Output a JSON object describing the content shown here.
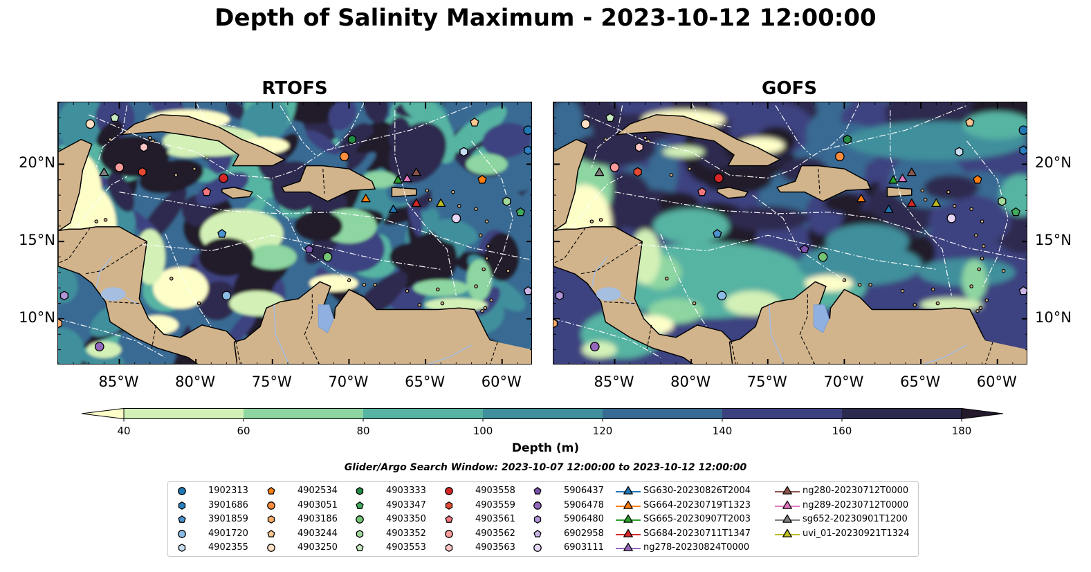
{
  "title": "Depth of Salinity Maximum - 2023-10-12 12:00:00",
  "panels": [
    {
      "title": "RTOFS"
    },
    {
      "title": "GOFS"
    }
  ],
  "map": {
    "lon_ticks": [
      "85°W",
      "80°W",
      "75°W",
      "70°W",
      "65°W",
      "60°W"
    ],
    "lat_ticks": [
      "20°N",
      "15°N",
      "10°N"
    ],
    "lon_range": [
      -89,
      -58
    ],
    "lat_range": [
      7,
      24
    ],
    "colors": {
      "land": "#d2b48c",
      "lake": "#8fb0e0",
      "river": "#a6bedf",
      "ocean_shallow": "#fdfdc8"
    }
  },
  "colorbar": {
    "ticks": [
      "40",
      "60",
      "80",
      "100",
      "120",
      "140",
      "160",
      "180"
    ],
    "label": "Depth (m)",
    "extend": "both",
    "colors": [
      "#fefec9",
      "#d3f1b7",
      "#8dd5a1",
      "#57b4a3",
      "#3f8f9c",
      "#386b93",
      "#3c4280",
      "#2d2a4f",
      "#241a2c"
    ]
  },
  "search_window": "Glider/Argo Search Window: 2023-10-07 12:00:00 to 2023-10-12 12:00:00",
  "legend": {
    "columns": [
      [
        {
          "label": "1902313",
          "marker": "circle",
          "color": "#1f77b4"
        },
        {
          "label": "3901686",
          "marker": "hexagon",
          "color": "#2a7fc0"
        },
        {
          "label": "3901859",
          "marker": "pentagon",
          "color": "#4a93cf"
        },
        {
          "label": "4901720",
          "marker": "circle",
          "color": "#8bbce6"
        },
        {
          "label": "4902355",
          "marker": "hexagon",
          "color": "#c7def2"
        }
      ],
      [
        {
          "label": "4902534",
          "marker": "pentagon",
          "color": "#ff7f0e"
        },
        {
          "label": "4903051",
          "marker": "circle",
          "color": "#fd8d3c"
        },
        {
          "label": "4903186",
          "marker": "hexagon",
          "color": "#fdae6b"
        },
        {
          "label": "4903244",
          "marker": "pentagon",
          "color": "#fdc58f"
        },
        {
          "label": "4903250",
          "marker": "circle",
          "color": "#fde0c5"
        }
      ],
      [
        {
          "label": "4903333",
          "marker": "hexagon",
          "color": "#238b45"
        },
        {
          "label": "4903347",
          "marker": "pentagon",
          "color": "#41ab5d"
        },
        {
          "label": "4903350",
          "marker": "circle",
          "color": "#74c476"
        },
        {
          "label": "4903352",
          "marker": "hexagon",
          "color": "#a1d99b"
        },
        {
          "label": "4903553",
          "marker": "pentagon",
          "color": "#c7e9c0"
        }
      ],
      [
        {
          "label": "4903558",
          "marker": "circle",
          "color": "#d62728"
        },
        {
          "label": "4903559",
          "marker": "hexagon",
          "color": "#e34a33"
        },
        {
          "label": "4903561",
          "marker": "pentagon",
          "color": "#f4777f"
        },
        {
          "label": "4903562",
          "marker": "circle",
          "color": "#f79b9b"
        },
        {
          "label": "4903563",
          "marker": "hexagon",
          "color": "#fcc5c5"
        }
      ],
      [
        {
          "label": "5906437",
          "marker": "pentagon",
          "color": "#7b52ab"
        },
        {
          "label": "5906478",
          "marker": "circle",
          "color": "#9467bd"
        },
        {
          "label": "5906480",
          "marker": "hexagon",
          "color": "#b294d8"
        },
        {
          "label": "6902958",
          "marker": "pentagon",
          "color": "#cbb5e8"
        },
        {
          "label": "6903111",
          "marker": "circle",
          "color": "#e5d6f5"
        }
      ],
      [
        {
          "label": "SG630-20230826T2004",
          "marker": "triangle",
          "color": "#1f77b4"
        },
        {
          "label": "SG664-20230719T1323",
          "marker": "triangle",
          "color": "#ff7f0e"
        },
        {
          "label": "SG665-20230907T2003",
          "marker": "triangle",
          "color": "#2ca02c"
        },
        {
          "label": "SG684-20230711T1347",
          "marker": "triangle",
          "color": "#d62728"
        },
        {
          "label": "ng278-20230824T0000",
          "marker": "triangle",
          "color": "#9467bd"
        }
      ],
      [
        {
          "label": "ng280-20230712T0000",
          "marker": "triangle",
          "color": "#8c564b"
        },
        {
          "label": "ng289-20230712T0000",
          "marker": "triangle",
          "color": "#e377c2"
        },
        {
          "label": "sg652-20230901T1200",
          "marker": "triangle",
          "color": "#7f7f7f"
        },
        {
          "label": "uvi_01-20230921T1324",
          "marker": "triangle",
          "color": "#bcbd22"
        }
      ]
    ]
  },
  "observations": [
    {
      "id": "1902313",
      "lon": -58.3,
      "lat": 22.2
    },
    {
      "id": "3901686",
      "lon": -58.3,
      "lat": 20.9
    },
    {
      "id": "4902355",
      "lon": -62.5,
      "lat": 20.8
    },
    {
      "id": "4903250",
      "lon": -86.9,
      "lat": 22.6
    },
    {
      "id": "4903553",
      "lon": -85.3,
      "lat": 23.0
    },
    {
      "id": "4903563",
      "lon": -83.4,
      "lat": 21.1
    },
    {
      "id": "4903562",
      "lon": -85.0,
      "lat": 19.8
    },
    {
      "id": "4903561",
      "lon": -79.3,
      "lat": 18.2
    },
    {
      "id": "4903559",
      "lon": -83.5,
      "lat": 19.5
    },
    {
      "id": "4903558",
      "lon": -78.2,
      "lat": 19.1
    },
    {
      "id": "4903333",
      "lon": -69.8,
      "lat": 21.6
    },
    {
      "id": "4903051",
      "lon": -70.3,
      "lat": 20.5
    },
    {
      "id": "4903244",
      "lon": -61.8,
      "lat": 22.7
    },
    {
      "id": "4902534",
      "lon": -61.3,
      "lat": 19.0
    },
    {
      "id": "4903352",
      "lon": -59.7,
      "lat": 17.6
    },
    {
      "id": "4903347",
      "lon": -58.8,
      "lat": 16.9
    },
    {
      "id": "6903111",
      "lon": -63.0,
      "lat": 16.5
    },
    {
      "id": "3901859",
      "lon": -78.3,
      "lat": 15.5
    },
    {
      "id": "5906437",
      "lon": -72.6,
      "lat": 14.5
    },
    {
      "id": "4903350",
      "lon": -71.4,
      "lat": 14.0
    },
    {
      "id": "4901720",
      "lon": -78.0,
      "lat": 11.5
    },
    {
      "id": "5906480",
      "lon": -88.6,
      "lat": 11.5
    },
    {
      "id": "4903186",
      "lon": -89.0,
      "lat": 9.7
    },
    {
      "id": "5906478",
      "lon": -86.3,
      "lat": 8.2
    },
    {
      "id": "6902958",
      "lon": -58.3,
      "lat": 11.8
    },
    {
      "id": "SG630-20230826T2004",
      "lon": -67.1,
      "lat": 17.1
    },
    {
      "id": "SG664-20230719T1323",
      "lon": -68.9,
      "lat": 17.8
    },
    {
      "id": "SG665-20230907T2003",
      "lon": -66.8,
      "lat": 19.0
    },
    {
      "id": "SG684-20230711T1347",
      "lon": -65.6,
      "lat": 17.5
    },
    {
      "id": "ng280-20230712T0000",
      "lon": -65.6,
      "lat": 19.5
    },
    {
      "id": "ng289-20230712T0000",
      "lon": -66.2,
      "lat": 19.1
    },
    {
      "id": "sg652-20230901T1200",
      "lon": -86.0,
      "lat": 19.5
    },
    {
      "id": "uvi_01-20230921T1324",
      "lon": -64.0,
      "lat": 17.5
    }
  ]
}
